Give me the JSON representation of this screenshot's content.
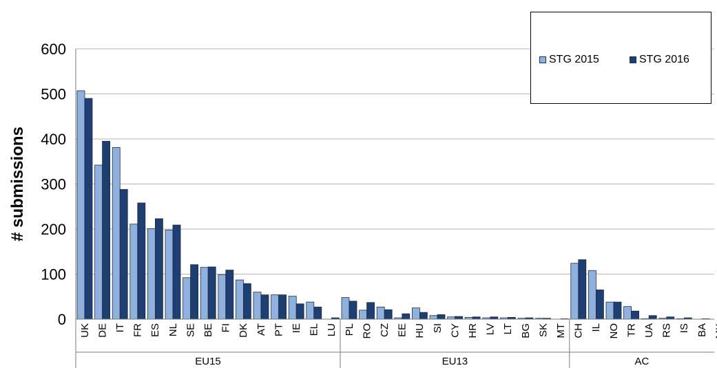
{
  "chart_data": {
    "type": "bar",
    "ylabel": "# submissions",
    "ylim": [
      0,
      600
    ],
    "yticks": [
      0,
      100,
      200,
      300,
      400,
      500,
      600
    ],
    "grid": true,
    "legend_position": "top-right",
    "categories": [
      "UK",
      "DE",
      "IT",
      "FR",
      "ES",
      "NL",
      "SE",
      "BE",
      "FI",
      "DK",
      "AT",
      "PT",
      "IE",
      "EL",
      "LU",
      "PL",
      "RO",
      "CZ",
      "EE",
      "HU",
      "SI",
      "CY",
      "HR",
      "LV",
      "LT",
      "BG",
      "SK",
      "MT",
      "CH",
      "IL",
      "NO",
      "TR",
      "UA",
      "RS",
      "IS",
      "BA",
      "MK"
    ],
    "groups": [
      {
        "label": "EU15",
        "count": 15
      },
      {
        "label": "EU13",
        "count": 13
      },
      {
        "label": "AC",
        "count": 9
      }
    ],
    "series": [
      {
        "name": "STG 2015",
        "color": "#8fb1de",
        "values": [
          507,
          342,
          381,
          211,
          201,
          198,
          92,
          115,
          99,
          87,
          60,
          54,
          51,
          38,
          0,
          48,
          20,
          27,
          3,
          25,
          8,
          5,
          4,
          3,
          3,
          2,
          2,
          0,
          124,
          108,
          38,
          28,
          1,
          2,
          1,
          0,
          0
        ]
      },
      {
        "name": "STG 2016",
        "color": "#1f3f73",
        "values": [
          490,
          395,
          288,
          258,
          223,
          209,
          121,
          116,
          109,
          79,
          54,
          54,
          34,
          27,
          3,
          40,
          37,
          21,
          12,
          15,
          10,
          6,
          5,
          5,
          4,
          3,
          2,
          1,
          132,
          65,
          38,
          18,
          8,
          5,
          3,
          1,
          3
        ]
      }
    ]
  }
}
